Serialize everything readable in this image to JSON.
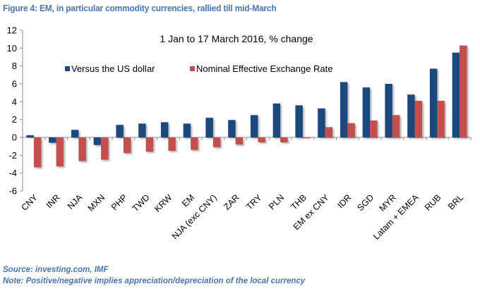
{
  "figure": {
    "title": "Figure 4: EM, in particular commodity currencies, rallied till mid-March",
    "source": "Source: investing.com, IMF",
    "note": "Note: Positive/negative implies appreciation/depreciation of the local currency"
  },
  "chart_data": {
    "type": "bar",
    "title": "1 Jan to 17 March 2016, % change",
    "xlabel": "",
    "ylabel": "",
    "ylim": [
      -6,
      12
    ],
    "yticks": [
      12,
      10,
      8,
      6,
      4,
      2,
      0,
      -2,
      -4,
      -6
    ],
    "grid": false,
    "legend": "top-left, inside plot",
    "categories": [
      "CNY",
      "INR",
      "NJA",
      "MXN",
      "PHP",
      "TWD",
      "KRW",
      "EM",
      "NJA (exc CNY)",
      "ZAR",
      "TRY",
      "PLN",
      "THB",
      "EM ex CNY",
      "IDR",
      "SGD",
      "MYR",
      "Latam + EMEA",
      "RUB",
      "BRL"
    ],
    "series": [
      {
        "name": "Versus the US dollar",
        "color": "#1f497d",
        "values": [
          0.25,
          -0.6,
          0.85,
          -0.85,
          1.4,
          1.55,
          1.7,
          1.55,
          2.2,
          1.95,
          2.5,
          3.8,
          3.6,
          3.25,
          6.2,
          5.6,
          6.0,
          4.8,
          7.7,
          9.5
        ]
      },
      {
        "name": "Nominal Effective Exchange Rate",
        "color": "#c0504d",
        "values": [
          -3.35,
          -3.25,
          -2.65,
          -2.5,
          -1.75,
          -1.6,
          -1.5,
          -1.4,
          -1.1,
          -0.8,
          -0.55,
          -0.55,
          -0.1,
          1.15,
          1.6,
          1.9,
          2.5,
          4.1,
          4.1,
          10.3
        ]
      }
    ]
  }
}
